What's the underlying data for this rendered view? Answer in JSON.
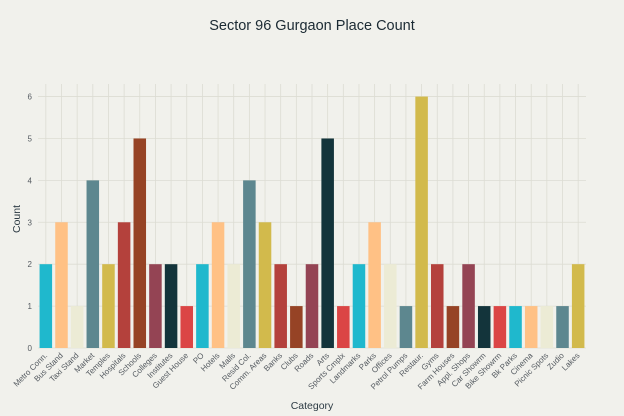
{
  "chart_data": {
    "type": "bar",
    "title": "Sector 96 Gurgaon Place Count",
    "xlabel": "Category",
    "ylabel": "Count",
    "ylim": [
      0,
      6.3
    ],
    "yticks": [
      0,
      1,
      2,
      3,
      4,
      5,
      6
    ],
    "grid": true,
    "categories": [
      "Metro Conn.",
      "Bus Stand",
      "Taxi Stand",
      "Market",
      "Temples",
      "Hospitals",
      "Schools",
      "Colleges",
      "Institutes",
      "Guest House",
      "PO",
      "Hotels",
      "Malls",
      "Resid Col.",
      "Comm. Areas",
      "Banks",
      "Clubs",
      "Roads",
      "Arts",
      "Sports Cmplx",
      "Landmarks",
      "Parks",
      "Offices",
      "Petrol Pumps",
      "Restaur.",
      "Gyms",
      "Farm Houses",
      "Appl. Shops",
      "Car Showrm",
      "Bike Showrm",
      "Bk Parks",
      "Cinema",
      "Picnic Spots",
      "Zudio",
      "Lakes"
    ],
    "values": [
      2,
      3,
      1,
      4,
      2,
      3,
      5,
      2,
      2,
      1,
      2,
      3,
      2,
      4,
      3,
      2,
      1,
      2,
      5,
      1,
      2,
      3,
      2,
      1,
      6,
      2,
      1,
      2,
      1,
      1,
      1,
      1,
      1,
      1,
      2
    ],
    "colors": [
      "#1fb8cd",
      "#ffc185",
      "#eceBd5",
      "#5d878f",
      "#d2ba4c",
      "#b4413c",
      "#964325",
      "#944454",
      "#13343b",
      "#db4545",
      "#1fb8cd",
      "#ffc185",
      "#eceBd5",
      "#5d878f",
      "#d2ba4c",
      "#b4413c",
      "#964325",
      "#944454",
      "#13343b",
      "#db4545",
      "#1fb8cd",
      "#ffc185",
      "#eceBd5",
      "#5d878f",
      "#d2ba4c",
      "#b4413c",
      "#964325",
      "#944454",
      "#13343b",
      "#db4545",
      "#1fb8cd",
      "#ffc185",
      "#eceBd5",
      "#5d878f",
      "#d2ba4c"
    ]
  }
}
